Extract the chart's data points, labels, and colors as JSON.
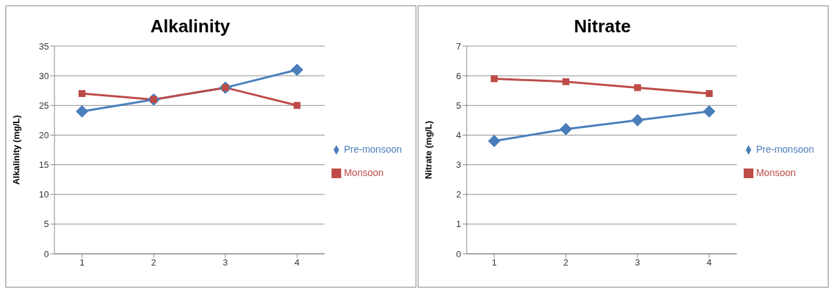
{
  "chart_data": [
    {
      "type": "line",
      "title": "Alkalinity",
      "ylabel": "Alkalinity (mg/L)",
      "categories": [
        "1",
        "2",
        "3",
        "4"
      ],
      "ylim": [
        0,
        35
      ],
      "yticks": [
        0,
        5,
        10,
        15,
        20,
        25,
        30,
        35
      ],
      "grid": "y",
      "legend": "right",
      "series": [
        {
          "name": "Pre-monsoon",
          "color": "#4a7ebb",
          "marker": "diamond",
          "values": [
            24,
            26,
            28,
            31
          ]
        },
        {
          "name": "Monsoon",
          "color": "#be4b48",
          "marker": "square",
          "values": [
            27,
            26,
            28,
            25
          ]
        }
      ]
    },
    {
      "type": "line",
      "title": "Nitrate",
      "ylabel": "Nitrate (mg/L)",
      "categories": [
        "1",
        "2",
        "3",
        "4"
      ],
      "ylim": [
        0,
        7
      ],
      "yticks": [
        0,
        1,
        2,
        3,
        4,
        5,
        6,
        7
      ],
      "grid": "y",
      "legend": "right",
      "series": [
        {
          "name": "Pre-monsoon",
          "color": "#4a7ebb",
          "marker": "diamond",
          "values": [
            3.8,
            4.2,
            4.5,
            4.8
          ]
        },
        {
          "name": "Monsoon",
          "color": "#be4b48",
          "marker": "square",
          "values": [
            5.9,
            5.8,
            5.6,
            5.4
          ]
        }
      ]
    }
  ]
}
